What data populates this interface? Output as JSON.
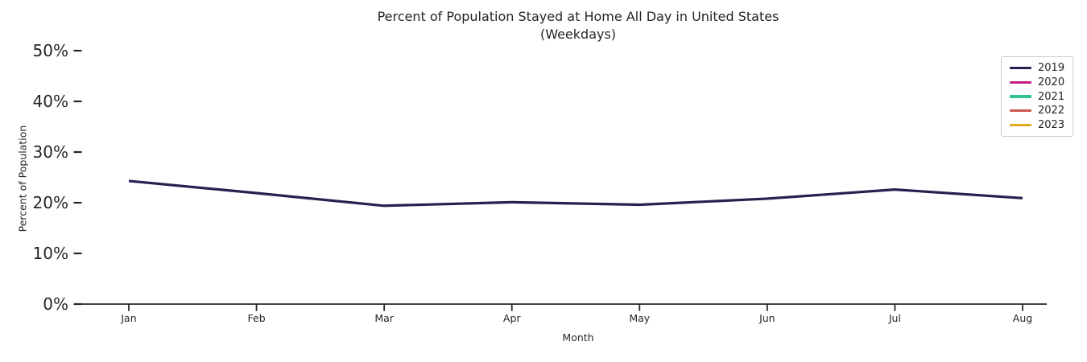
{
  "page": {
    "background": "#ffffff",
    "text_color": "#262626"
  },
  "chart_data": {
    "type": "line",
    "title": "Percent of Population Stayed at Home All Day in United States",
    "subtitle": "(Weekdays)",
    "xlabel": "Month",
    "ylabel": "Percent of Population",
    "categories": [
      "Jan",
      "Feb",
      "Mar",
      "Apr",
      "May",
      "Jun",
      "Jul",
      "Aug"
    ],
    "ylim": [
      0,
      50
    ],
    "yticks": [
      0,
      10,
      20,
      30,
      40,
      50
    ],
    "ytick_labels": [
      "0%",
      "10%",
      "20%",
      "30%",
      "40%",
      "50%"
    ],
    "grid": false,
    "legend_position": "upper-right",
    "series": [
      {
        "name": "2019",
        "color": "#252150",
        "values": [
          24.3,
          21.9,
          19.4,
          20.1,
          19.6,
          20.8,
          22.6,
          20.9
        ]
      },
      {
        "name": "2020",
        "color": "#c5207f",
        "values": []
      },
      {
        "name": "2021",
        "color": "#2fc39a",
        "values": []
      },
      {
        "name": "2022",
        "color": "#cd584e",
        "values": []
      },
      {
        "name": "2023",
        "color": "#e3aa1c",
        "values": []
      }
    ]
  }
}
